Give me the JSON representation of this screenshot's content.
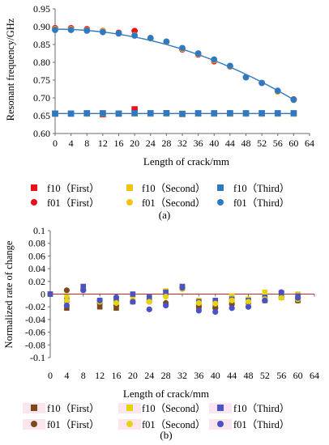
{
  "chart_data": [
    {
      "type": "scatter",
      "panel_label": "(a)",
      "xlabel": "Length of crack/mm",
      "ylabel": "Resonant frequency/GHz",
      "xlim": [
        0,
        64
      ],
      "ylim": [
        0.6,
        0.95
      ],
      "xticks": [
        0,
        4,
        8,
        12,
        16,
        20,
        24,
        28,
        32,
        36,
        40,
        44,
        48,
        52,
        56,
        60,
        64
      ],
      "yticks": [
        0.6,
        0.65,
        0.7,
        0.75,
        0.8,
        0.85,
        0.9,
        0.95
      ],
      "x": [
        0,
        4,
        8,
        12,
        16,
        20,
        24,
        28,
        32,
        36,
        40,
        44,
        48,
        52,
        56,
        60
      ],
      "series": [
        {
          "name": "f10（First）",
          "marker": "square",
          "color": "#e8101a",
          "values": [
            0.656,
            0.656,
            0.656,
            0.654,
            0.656,
            0.668,
            0.656,
            0.657,
            0.655,
            0.656,
            0.656,
            0.656,
            0.656,
            0.656,
            0.656,
            0.656
          ]
        },
        {
          "name": "f10（Second）",
          "marker": "square",
          "color": "#f2c40c",
          "values": [
            0.656,
            0.656,
            0.656,
            0.656,
            0.656,
            0.656,
            0.656,
            0.656,
            0.656,
            0.656,
            0.656,
            0.656,
            0.656,
            0.656,
            0.656,
            0.656
          ]
        },
        {
          "name": "f10（Third）",
          "marker": "square",
          "color": "#2e78c4",
          "values": [
            0.656,
            0.656,
            0.657,
            0.657,
            0.656,
            0.657,
            0.657,
            0.657,
            0.655,
            0.657,
            0.657,
            0.657,
            0.657,
            0.657,
            0.657,
            0.657
          ]
        },
        {
          "name": "f01（First）",
          "marker": "circle",
          "color": "#e8101a",
          "values": [
            0.896,
            0.896,
            0.893,
            0.888,
            0.883,
            0.888,
            0.868,
            0.858,
            0.836,
            0.822,
            0.803,
            0.788,
            0.758,
            0.742,
            0.718,
            0.696
          ]
        },
        {
          "name": "f01（Second）",
          "marker": "circle",
          "color": "#f2c40c",
          "values": [
            0.893,
            0.893,
            0.89,
            0.887,
            0.881,
            0.876,
            0.867,
            0.857,
            0.838,
            0.824,
            0.806,
            0.789,
            0.758,
            0.742,
            0.718,
            0.694
          ]
        },
        {
          "name": "f01（Third）",
          "marker": "circle",
          "color": "#2e78c4",
          "values": [
            0.891,
            0.891,
            0.889,
            0.885,
            0.881,
            0.875,
            0.868,
            0.858,
            0.84,
            0.825,
            0.808,
            0.79,
            0.758,
            0.742,
            0.72,
            0.695
          ]
        }
      ],
      "fit_curves": [
        {
          "color": "#2e78c4",
          "x": [
            0,
            60
          ],
          "values": [
            0.893,
            0.695
          ],
          "shape": "quadratic"
        },
        {
          "color": "#2e78c4",
          "x": [
            0,
            60
          ],
          "values": [
            0.656,
            0.656
          ],
          "shape": "linear"
        }
      ],
      "legend": "bottom"
    },
    {
      "type": "scatter",
      "panel_label": "(b)",
      "xlabel": "Length of crack/mm",
      "ylabel": "Normalized rate of change",
      "xlim": [
        0,
        64
      ],
      "ylim": [
        -0.1,
        0.1
      ],
      "xticks": [
        0,
        4,
        8,
        12,
        16,
        20,
        24,
        28,
        32,
        36,
        40,
        44,
        48,
        52,
        56,
        60,
        64
      ],
      "yticks": [
        0.1,
        0.08,
        0.06,
        0.04,
        0.02,
        0,
        -0.02,
        -0.04,
        -0.06,
        -0.08,
        -0.1
      ],
      "x": [
        0,
        4,
        8,
        12,
        16,
        20,
        24,
        28,
        32,
        36,
        40,
        44,
        48,
        52,
        56,
        60
      ],
      "series": [
        {
          "name": "f10（First）",
          "marker": "square",
          "color": "#7a4a1c",
          "values": [
            0,
            -0.022,
            0.01,
            -0.02,
            -0.022,
            -0.012,
            -0.008,
            0.002,
            0.01,
            -0.02,
            -0.02,
            -0.01,
            -0.012,
            -0.01,
            -0.005,
            -0.01
          ]
        },
        {
          "name": "f10（Second）",
          "marker": "square",
          "color": "#e6d20f",
          "values": [
            0,
            -0.005,
            0.012,
            -0.01,
            -0.008,
            -0.002,
            -0.005,
            0.005,
            0.012,
            -0.01,
            -0.01,
            -0.003,
            -0.008,
            0.003,
            -0.003,
            0
          ]
        },
        {
          "name": "f10（Third）",
          "marker": "square",
          "color": "#4a52c4",
          "values": [
            0,
            -0.01,
            0.012,
            -0.01,
            -0.01,
            0,
            -0.005,
            0.003,
            0.012,
            -0.012,
            -0.01,
            -0.008,
            -0.01,
            -0.005,
            0.002,
            -0.003
          ]
        },
        {
          "name": "f01（First）",
          "marker": "circle",
          "color": "#7a4a1c",
          "values": [
            0,
            0.006,
            0.006,
            -0.014,
            -0.018,
            -0.012,
            -0.012,
            -0.014,
            0.008,
            -0.02,
            -0.022,
            -0.016,
            -0.02,
            -0.01,
            -0.005,
            -0.01
          ]
        },
        {
          "name": "f01（Second）",
          "marker": "circle",
          "color": "#e6d20f",
          "values": [
            0,
            -0.01,
            0.006,
            -0.012,
            -0.014,
            -0.01,
            -0.012,
            -0.004,
            0.008,
            -0.014,
            -0.015,
            -0.01,
            -0.012,
            -0.008,
            -0.006,
            -0.008
          ]
        },
        {
          "name": "f01（Third）",
          "marker": "circle",
          "color": "#4a52c4",
          "values": [
            0,
            -0.018,
            0.006,
            -0.01,
            -0.005,
            -0.012,
            -0.024,
            -0.018,
            0.01,
            -0.026,
            -0.028,
            -0.022,
            -0.02,
            -0.01,
            0.003,
            -0.006
          ]
        }
      ],
      "zero_line_color": "#c0282c",
      "legend": "bottom"
    }
  ]
}
